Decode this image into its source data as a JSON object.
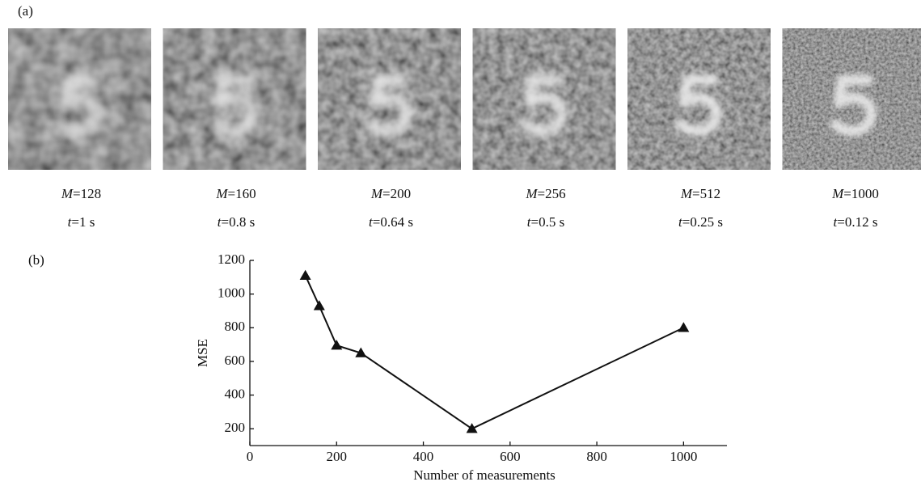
{
  "panel_a": {
    "label": "(a)",
    "images": [
      {
        "m": {
          "symbol": "M",
          "text": "=128"
        },
        "t": {
          "symbol": "t",
          "text": "=1 s"
        }
      },
      {
        "m": {
          "symbol": "M",
          "text": "=160"
        },
        "t": {
          "symbol": "t",
          "text": "=0.8 s"
        }
      },
      {
        "m": {
          "symbol": "M",
          "text": "=200"
        },
        "t": {
          "symbol": "t",
          "text": "=0.64 s"
        }
      },
      {
        "m": {
          "symbol": "M",
          "text": "=256"
        },
        "t": {
          "symbol": "t",
          "text": "=0.5 s"
        }
      },
      {
        "m": {
          "symbol": "M",
          "text": "=512"
        },
        "t": {
          "symbol": "t",
          "text": "=0.25 s"
        }
      },
      {
        "m": {
          "symbol": "M",
          "text": "=1000"
        },
        "t": {
          "symbol": "t",
          "text": "=0.12 s"
        }
      }
    ]
  },
  "panel_b": {
    "label": "(b)"
  },
  "chart_data": {
    "type": "line",
    "x": [
      128,
      160,
      200,
      256,
      512,
      1000
    ],
    "values": [
      1110,
      930,
      695,
      650,
      200,
      800
    ],
    "color": "#111111",
    "marker": "triangle",
    "xlabel": "Number of measurements",
    "ylabel": "MSE",
    "xlim": [
      0,
      1100
    ],
    "ylim": [
      100,
      1200
    ],
    "xticks": [
      0,
      200,
      400,
      600,
      800,
      1000
    ],
    "yticks": [
      200,
      400,
      600,
      800,
      1000,
      1200
    ]
  }
}
